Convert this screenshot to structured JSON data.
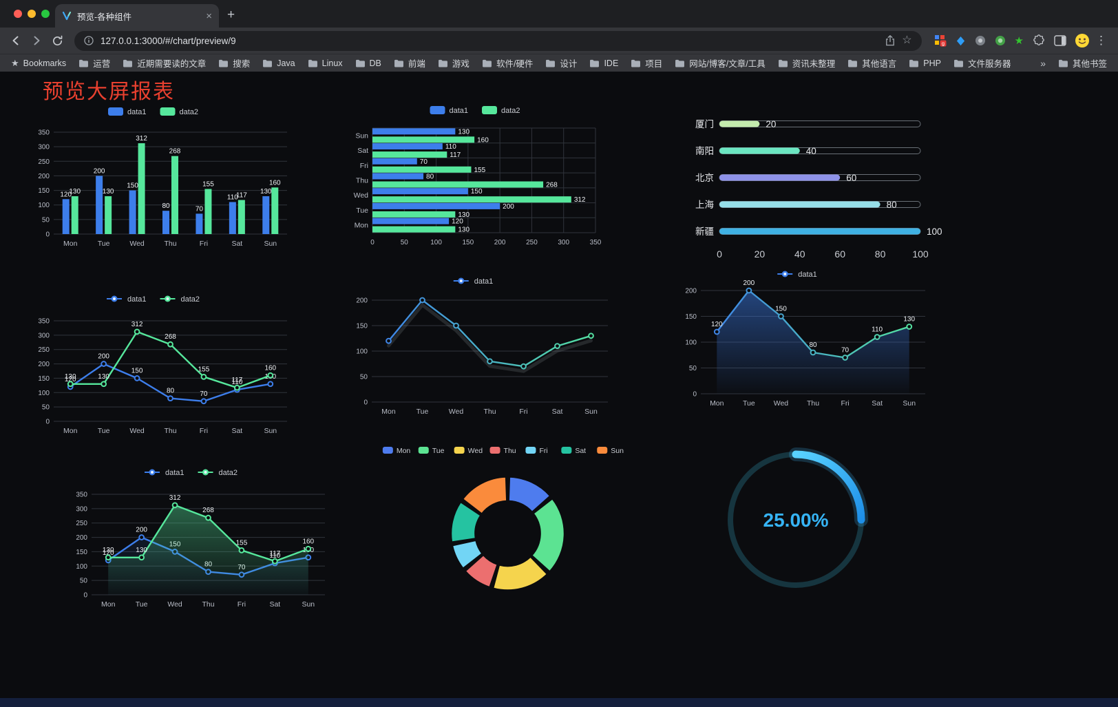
{
  "browser": {
    "window_controls": {
      "close": "#FF5F57",
      "minimize": "#FEBC2E",
      "zoom": "#28C840"
    },
    "tab": {
      "title": "预览-各种组件",
      "close_icon": "×",
      "new_tab_icon": "+"
    },
    "address": {
      "url": "127.0.0.1:3000/#/chart/preview/9"
    },
    "icons": {
      "bookmark_star": "☆",
      "bookmarks_bar_star": "★",
      "overflow": "»",
      "menu": "⋮"
    },
    "bookmarks_bar": {
      "bookmarks_label": "Bookmarks",
      "items": [
        "运营",
        "近期需要读的文章",
        "搜索",
        "Java",
        "Linux",
        "DB",
        "前端",
        "游戏",
        "软件/硬件",
        "设计",
        "IDE",
        "项目",
        "网站/博客/文章/工具",
        "资讯未整理",
        "其他语言",
        "PHP",
        "文件服务器"
      ],
      "overflow_icon": "»",
      "other_bookmarks_label": "其他书签"
    }
  },
  "page": {
    "title": "预览大屏报表",
    "title_color": "#E8402F",
    "background": "#0B0C0F"
  },
  "chart_data": [
    {
      "id": "grouped-bar",
      "type": "bar",
      "categories": [
        "Mon",
        "Tue",
        "Wed",
        "Thu",
        "Fri",
        "Sat",
        "Sun"
      ],
      "series": [
        {
          "name": "data1",
          "color": "#3D7EEB",
          "values": [
            120,
            200,
            150,
            80,
            70,
            110,
            130
          ]
        },
        {
          "name": "data2",
          "color": "#56E79C",
          "values": [
            130,
            130,
            312,
            268,
            155,
            117,
            160
          ]
        }
      ],
      "ylim": [
        0,
        350
      ],
      "ytick_step": 50,
      "legend_position": "top",
      "value_labels": true,
      "grid": true
    },
    {
      "id": "horizontal-bar",
      "type": "bar",
      "orientation": "horizontal",
      "categories": [
        "Mon",
        "Tue",
        "Wed",
        "Thu",
        "Fri",
        "Sat",
        "Sun"
      ],
      "display_order_top_to_bottom": [
        "Sun",
        "Sat",
        "Fri",
        "Thu",
        "Wed",
        "Tue",
        "Mon"
      ],
      "series": [
        {
          "name": "data1",
          "color": "#3D7EEB",
          "values": [
            120,
            200,
            150,
            80,
            70,
            110,
            130
          ]
        },
        {
          "name": "data2",
          "color": "#56E79C",
          "values": [
            130,
            130,
            312,
            268,
            155,
            117,
            160
          ]
        }
      ],
      "xlim": [
        0,
        350
      ],
      "xtick_step": 50,
      "legend_position": "top",
      "value_labels": true,
      "grid": true
    },
    {
      "id": "city-progress",
      "type": "bar",
      "orientation": "horizontal-progress",
      "items": [
        {
          "label": "厦门",
          "value": 20,
          "color": "#C4EBAD"
        },
        {
          "label": "南阳",
          "value": 40,
          "color": "#6BE6C1"
        },
        {
          "label": "北京",
          "value": 60,
          "color": "#8E92E8"
        },
        {
          "label": "上海",
          "value": 80,
          "color": "#96DEE8"
        },
        {
          "label": "新疆",
          "value": 100,
          "color": "#3FB1E3"
        }
      ],
      "max": 100,
      "xticks": [
        0,
        20,
        40,
        60,
        80,
        100
      ]
    },
    {
      "id": "line-two-series",
      "type": "line",
      "categories": [
        "Mon",
        "Tue",
        "Wed",
        "Thu",
        "Fri",
        "Sat",
        "Sun"
      ],
      "series": [
        {
          "name": "data1",
          "color": "#3D7EEB",
          "values": [
            120,
            200,
            150,
            80,
            70,
            110,
            130
          ]
        },
        {
          "name": "data2",
          "color": "#56E79C",
          "values": [
            130,
            130,
            312,
            268,
            155,
            117,
            160
          ]
        }
      ],
      "ylim": [
        0,
        350
      ],
      "ytick_step": 50,
      "legend_position": "top",
      "value_labels": true,
      "grid": true
    },
    {
      "id": "gradient-line",
      "type": "line",
      "categories": [
        "Mon",
        "Tue",
        "Wed",
        "Thu",
        "Fri",
        "Sat",
        "Sun"
      ],
      "series": [
        {
          "name": "data1",
          "gradient": [
            "#3D7EEB",
            "#56E79C"
          ],
          "values": [
            120,
            200,
            150,
            80,
            70,
            110,
            130
          ]
        }
      ],
      "ylim": [
        0,
        200
      ],
      "ytick_step": 50,
      "legend_position": "top",
      "value_labels": false,
      "grid": true
    },
    {
      "id": "area-single",
      "type": "area",
      "categories": [
        "Mon",
        "Tue",
        "Wed",
        "Thu",
        "Fri",
        "Sat",
        "Sun"
      ],
      "series": [
        {
          "name": "data1",
          "color": "#3D7EEB",
          "gradient": [
            "#3D7EEB",
            "#56E79C"
          ],
          "area": true,
          "area_opacity": 0.5,
          "values": [
            120,
            200,
            150,
            80,
            70,
            110,
            130
          ]
        }
      ],
      "ylim": [
        0,
        200
      ],
      "ytick_step": 50,
      "legend_position": "top",
      "value_labels": true,
      "grid": true
    },
    {
      "id": "area-two-series",
      "type": "area",
      "categories": [
        "Mon",
        "Tue",
        "Wed",
        "Thu",
        "Fri",
        "Sat",
        "Sun"
      ],
      "series": [
        {
          "name": "data1",
          "color": "#3D7EEB",
          "area": true,
          "area_opacity": 0.18,
          "values": [
            120,
            200,
            150,
            80,
            70,
            110,
            130
          ]
        },
        {
          "name": "data2",
          "color": "#56E79C",
          "area": true,
          "area_opacity": 0.45,
          "values": [
            130,
            130,
            312,
            268,
            155,
            117,
            160
          ]
        }
      ],
      "ylim": [
        0,
        350
      ],
      "ytick_step": 50,
      "legend_position": "top",
      "value_labels": true,
      "grid": true
    },
    {
      "id": "weekday-donut",
      "type": "pie",
      "categories": [
        "Mon",
        "Tue",
        "Wed",
        "Thu",
        "Fri",
        "Sat",
        "Sun"
      ],
      "values": [
        120,
        200,
        150,
        80,
        70,
        110,
        130
      ],
      "colors": [
        "#4E7CEE",
        "#5CE392",
        "#F5D44D",
        "#EC6F6F",
        "#72D5F5",
        "#25C3A1",
        "#FA8B3C"
      ],
      "inner_radius_ratio": 0.58,
      "legend_position": "top"
    },
    {
      "id": "percent-gauge",
      "type": "gauge",
      "value": 25,
      "max": 100,
      "display": "25.00%",
      "color": "#36B4F5",
      "track_color": "#16353F"
    }
  ]
}
